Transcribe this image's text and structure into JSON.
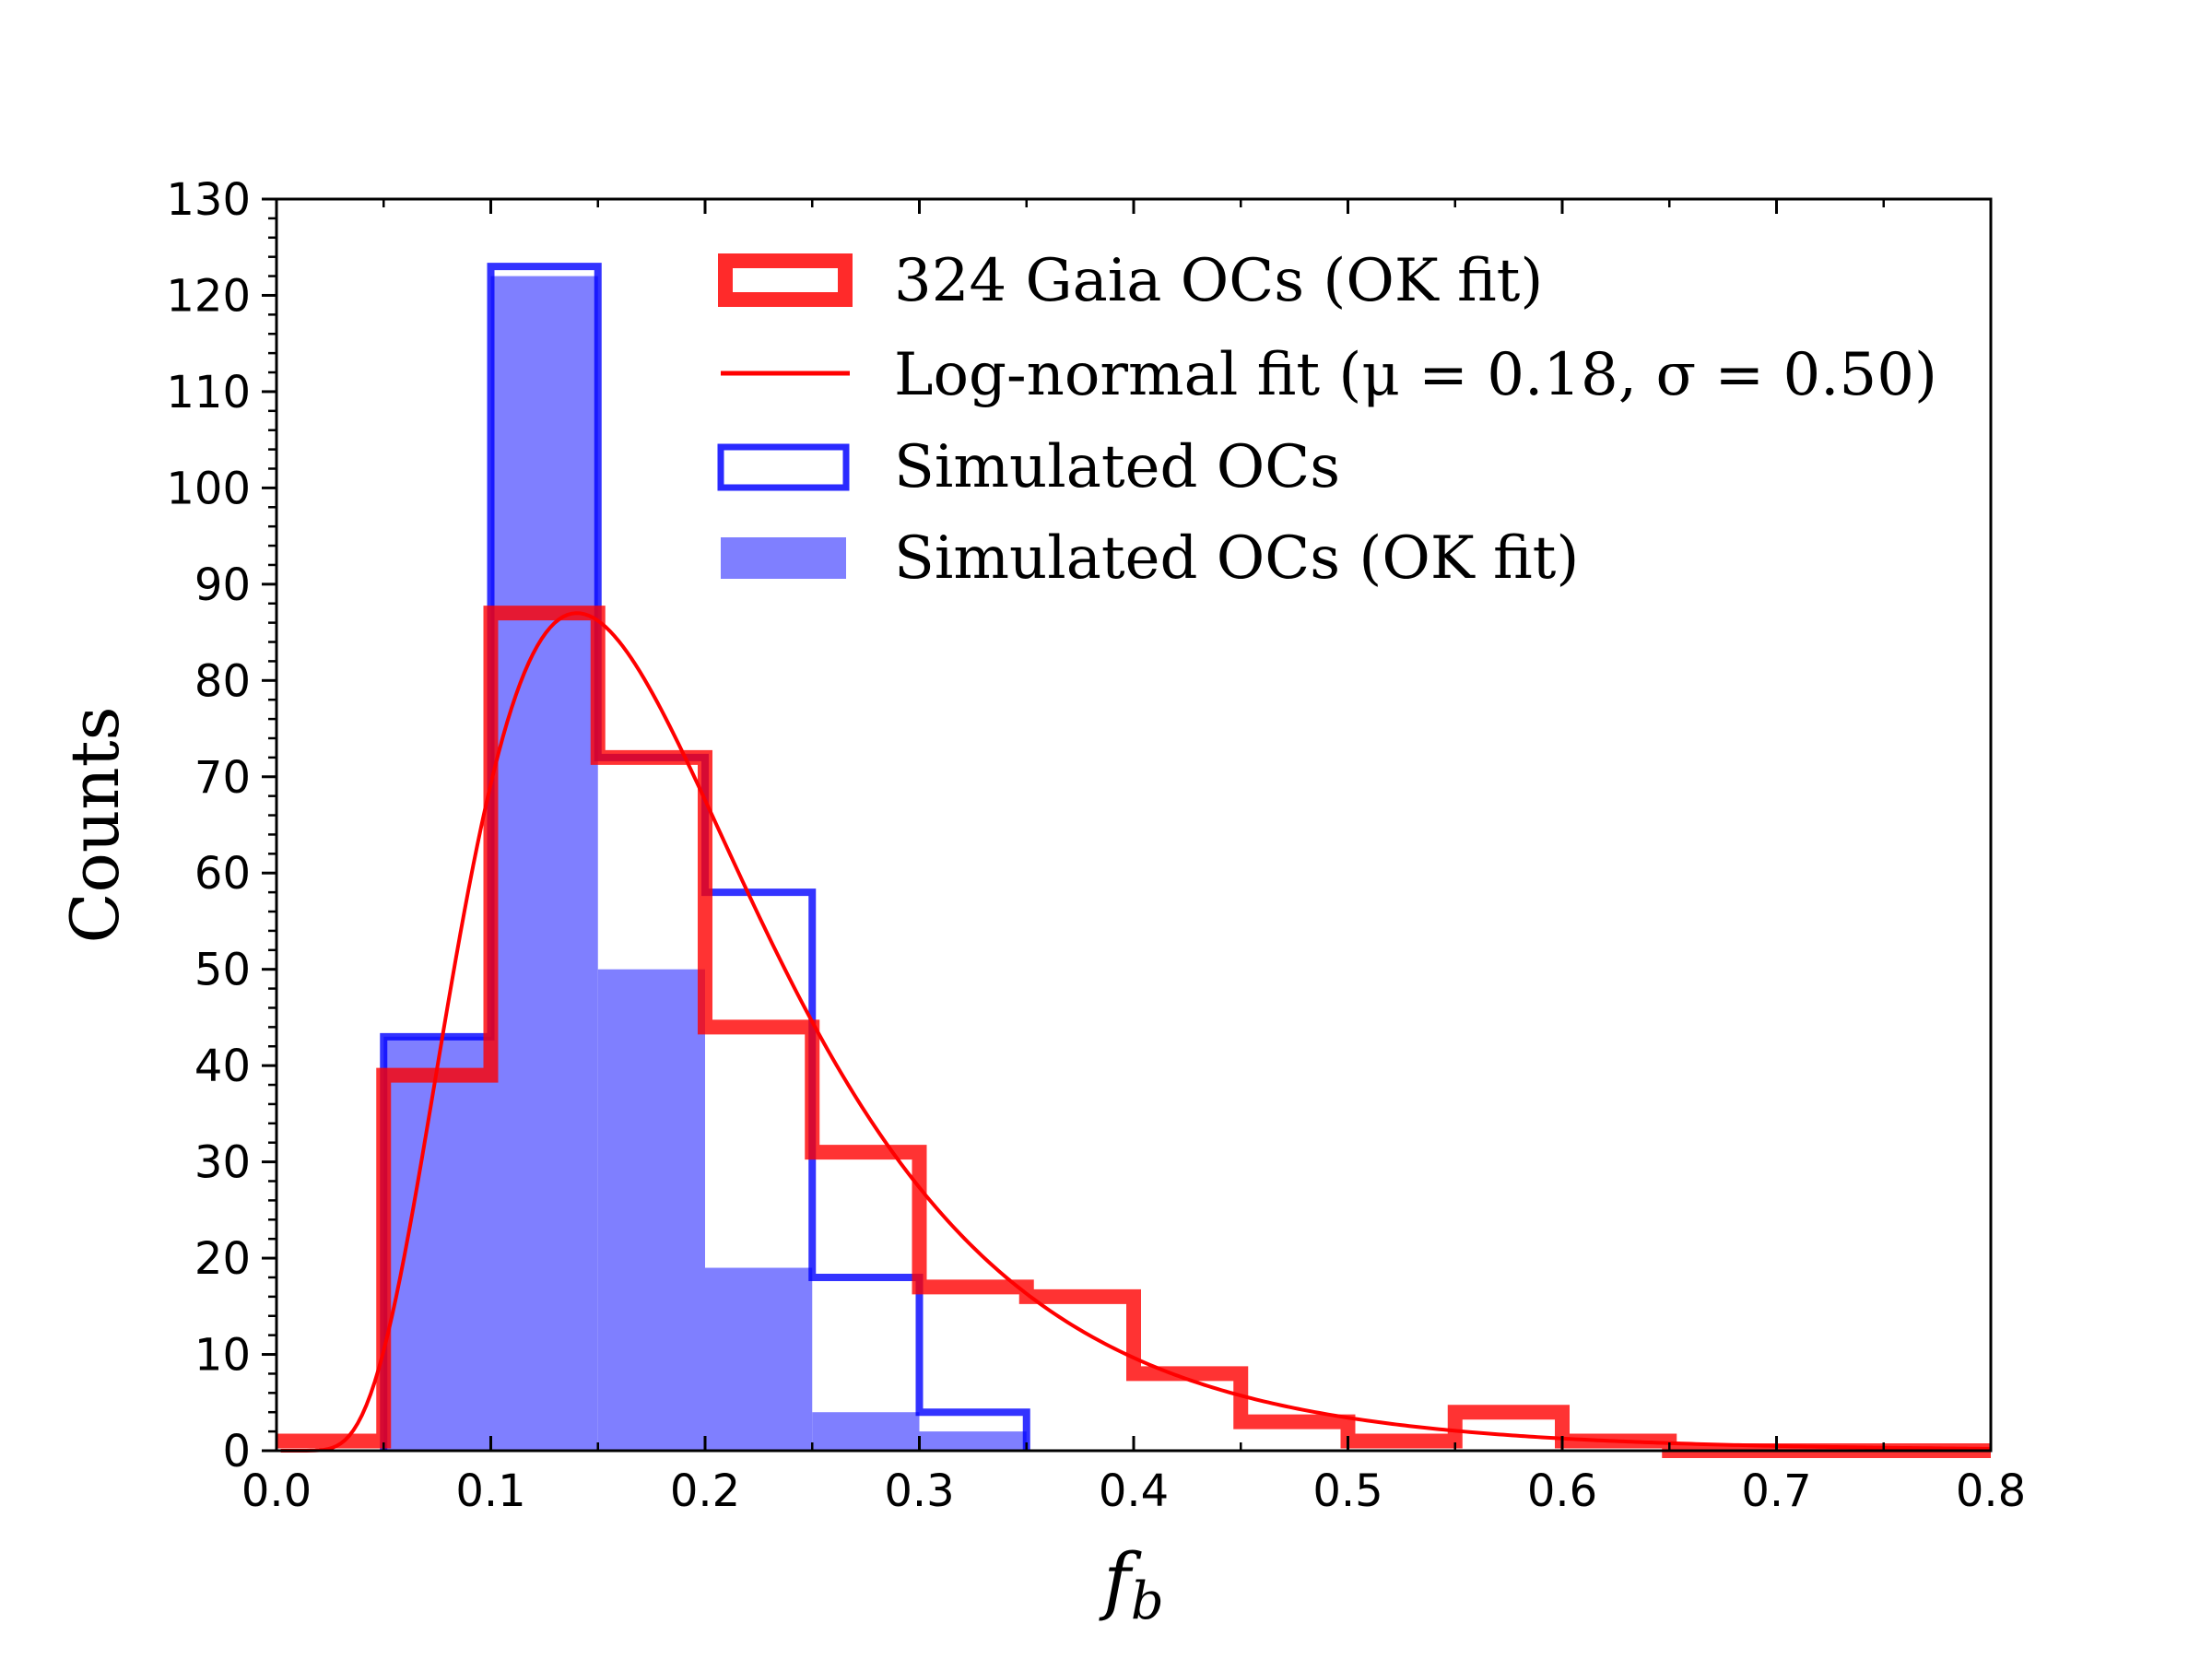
{
  "chart_data": {
    "type": "bar",
    "title": "",
    "xlabel": "f",
    "xlabel_subscript": "b",
    "ylabel": "Counts",
    "xlim": [
      0.0,
      0.8
    ],
    "ylim": [
      0,
      130
    ],
    "x_ticks": [
      "0.0",
      "0.1",
      "0.2",
      "0.3",
      "0.4",
      "0.5",
      "0.6",
      "0.7",
      "0.8"
    ],
    "y_ticks": [
      "0",
      "10",
      "20",
      "30",
      "40",
      "50",
      "60",
      "70",
      "80",
      "90",
      "100",
      "110",
      "120",
      "130"
    ],
    "bin_edges": [
      0.0,
      0.05,
      0.1,
      0.15,
      0.2,
      0.25,
      0.3,
      0.35,
      0.4,
      0.45,
      0.5,
      0.55,
      0.6,
      0.65,
      0.7,
      0.75,
      0.8
    ],
    "grid": false,
    "legend_position": "top-right",
    "series": [
      {
        "name": "324 Gaia OCs (OK fit)",
        "style": "step",
        "color": "#ff0000",
        "values": [
          1,
          39,
          87,
          72,
          44,
          31,
          17,
          16,
          8,
          3,
          1,
          4,
          1,
          0,
          0,
          0
        ]
      },
      {
        "name": "Simulated OCs",
        "style": "step",
        "color": "#0000ff",
        "values": [
          0,
          43,
          123,
          72,
          58,
          18,
          4,
          0,
          0,
          0,
          0,
          0,
          0,
          0,
          0,
          0
        ]
      },
      {
        "name": "Simulated OCs (OK fit)",
        "style": "filled",
        "color": "#7f7fff",
        "values": [
          0,
          43,
          122,
          50,
          19,
          4,
          2,
          0,
          0,
          0,
          0,
          0,
          0,
          0,
          0,
          0
        ]
      },
      {
        "name": "Log-normal fit",
        "name_params": "(μ = 0.18, σ = 0.50)",
        "style": "line",
        "color": "#ff0000",
        "mu": 0.18,
        "sigma": 0.5,
        "peak_count": 87
      }
    ]
  }
}
